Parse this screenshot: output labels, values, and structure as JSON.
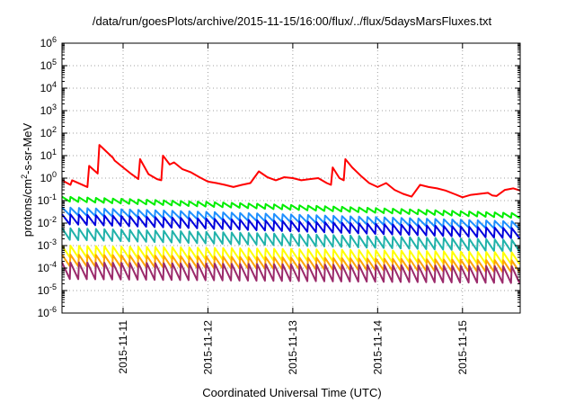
{
  "chart_data": {
    "type": "line",
    "title": "/data/run/goesPlots/archive/2015-11-15/16:00/flux/../flux/5daysMarsFluxes.txt",
    "xlabel": "Coordinated Universal Time (UTC)",
    "ylabel": "protons/cm2-s-sr-MeV",
    "ylabel_parts": {
      "pre": "protons/cm",
      "sup": "2",
      "post": "-s-sr-MeV"
    },
    "yscale": "log",
    "ylim": [
      1e-06,
      1000000.0
    ],
    "xlim": [
      -0.72,
      4.68
    ],
    "x_unit": "days after 2015-11-11 00:00 UTC",
    "grid": true,
    "legend": "none",
    "x_ticks": [
      {
        "x": 0,
        "label": "2015-11-11"
      },
      {
        "x": 1,
        "label": "2015-11-12"
      },
      {
        "x": 2,
        "label": "2015-11-13"
      },
      {
        "x": 3,
        "label": "2015-11-14"
      },
      {
        "x": 4,
        "label": "2015-11-15"
      }
    ],
    "y_ticks": [
      {
        "exp": -6,
        "label": "10",
        "sup": "-6"
      },
      {
        "exp": -5,
        "label": "10",
        "sup": "-5"
      },
      {
        "exp": -4,
        "label": "10",
        "sup": "-4"
      },
      {
        "exp": -3,
        "label": "10",
        "sup": "-3"
      },
      {
        "exp": -2,
        "label": "10",
        "sup": "-2"
      },
      {
        "exp": -1,
        "label": "10",
        "sup": "-1"
      },
      {
        "exp": 0,
        "label": "10",
        "sup": "0"
      },
      {
        "exp": 1,
        "label": "10",
        "sup": "1"
      },
      {
        "exp": 2,
        "label": "10",
        "sup": "2"
      },
      {
        "exp": 3,
        "label": "10",
        "sup": "3"
      },
      {
        "exp": 4,
        "label": "10",
        "sup": "4"
      },
      {
        "exp": 5,
        "label": "10",
        "sup": "5"
      },
      {
        "exp": 6,
        "label": "10",
        "sup": "6"
      }
    ],
    "sawtooth_period_days": 0.1,
    "series": [
      {
        "color": "#ff0000",
        "x": [
          -0.72,
          -0.62,
          -0.6,
          -0.42,
          -0.4,
          -0.3,
          -0.28,
          -0.12,
          -0.1,
          0,
          0.1,
          0.18,
          0.2,
          0.3,
          0.4,
          0.45,
          0.47,
          0.55,
          0.6,
          0.7,
          0.8,
          0.9,
          1.0,
          1.1,
          1.2,
          1.3,
          1.4,
          1.5,
          1.6,
          1.7,
          1.8,
          1.9,
          2.0,
          2.1,
          2.2,
          2.3,
          2.4,
          2.45,
          2.47,
          2.55,
          2.6,
          2.62,
          2.7,
          2.8,
          2.9,
          3.0,
          3.1,
          3.2,
          3.3,
          3.4,
          3.5,
          3.6,
          3.7,
          3.8,
          3.9,
          4.0,
          4.1,
          4.2,
          4.3,
          4.35,
          4.4,
          4.5,
          4.6,
          4.68
        ],
        "values": [
          0.8,
          0.5,
          0.8,
          0.4,
          3.5,
          1.6,
          30,
          8,
          6,
          3,
          1.5,
          0.9,
          7,
          1.5,
          0.9,
          0.8,
          10,
          4,
          5,
          2.5,
          1.8,
          1.1,
          0.7,
          0.6,
          0.5,
          0.4,
          0.5,
          0.6,
          2,
          1.1,
          0.8,
          1.1,
          1,
          0.8,
          0.9,
          1,
          0.6,
          0.5,
          3,
          1,
          0.8,
          7,
          3,
          1.3,
          0.6,
          0.4,
          0.6,
          0.3,
          0.2,
          0.15,
          0.5,
          0.4,
          0.35,
          0.28,
          0.2,
          0.14,
          0.18,
          0.2,
          0.22,
          0.17,
          0.16,
          0.3,
          0.35,
          0.28
        ]
      },
      {
        "color": "#00ee00",
        "peak": 0.15,
        "peak_end": 0.028,
        "dip_ratio": 0.6
      },
      {
        "color": "#1e90ff",
        "peak": 0.05,
        "peak_end": 0.012,
        "dip_ratio": 0.45
      },
      {
        "color": "#0000dd",
        "peak": 0.025,
        "peak_end": 0.006,
        "dip_ratio": 0.35
      },
      {
        "color": "#20b2aa",
        "peak": 0.006,
        "peak_end": 0.0018,
        "dip_ratio": 0.3
      },
      {
        "color": "#ffff00",
        "peak": 0.001,
        "peak_end": 0.0005,
        "dip_ratio": 0.3
      },
      {
        "color": "#ffa500",
        "peak": 0.0004,
        "peak_end": 0.00022,
        "dip_ratio": 0.3
      },
      {
        "color": "#9b2a6b",
        "peak": 0.00018,
        "peak_end": 0.00012,
        "dip_ratio": 0.18
      }
    ]
  }
}
